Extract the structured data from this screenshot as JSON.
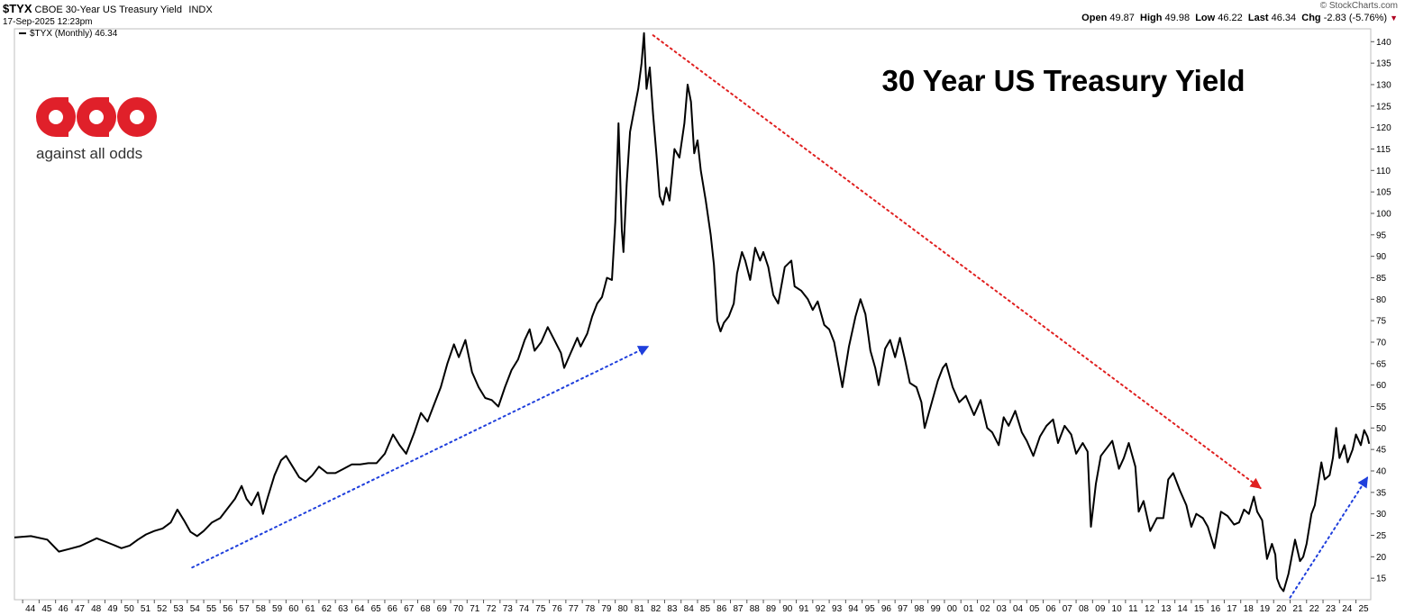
{
  "header": {
    "symbol": "$TYX",
    "description": "CBOE 30-Year US Treasury Yield",
    "exchange": "INDX",
    "timestamp": "17-Sep-2025 12:23pm",
    "watermark": "© StockCharts.com",
    "open_label": "Open",
    "open": "49.87",
    "high_label": "High",
    "high": "49.98",
    "low_label": "Low",
    "low": "46.22",
    "last_label": "Last",
    "last": "46.34",
    "chg_label": "Chg",
    "chg": "-2.83 (-5.76%)",
    "chg_color": "#b00020"
  },
  "legend": {
    "text": "$TYX (Monthly) 46.34"
  },
  "logo": {
    "text": "against all odds",
    "color": "#e0202a"
  },
  "chart_data": {
    "type": "line",
    "title": "30 Year US Treasury Yield",
    "xlabel": "",
    "ylabel": "",
    "ylim": [
      10,
      143
    ],
    "xlim": [
      1943.5,
      2025.9
    ],
    "x_tick_labels": [
      "44",
      "45",
      "46",
      "47",
      "48",
      "49",
      "50",
      "51",
      "52",
      "53",
      "54",
      "55",
      "56",
      "57",
      "58",
      "59",
      "60",
      "61",
      "62",
      "63",
      "64",
      "65",
      "66",
      "67",
      "68",
      "69",
      "70",
      "71",
      "72",
      "73",
      "74",
      "75",
      "76",
      "77",
      "78",
      "79",
      "80",
      "81",
      "82",
      "83",
      "84",
      "85",
      "86",
      "87",
      "88",
      "89",
      "90",
      "91",
      "92",
      "93",
      "94",
      "95",
      "96",
      "97",
      "98",
      "99",
      "00",
      "01",
      "02",
      "03",
      "04",
      "05",
      "06",
      "07",
      "08",
      "09",
      "10",
      "11",
      "12",
      "13",
      "14",
      "15",
      "16",
      "17",
      "18",
      "19",
      "20",
      "21",
      "22",
      "23",
      "24",
      "25"
    ],
    "y_ticks": [
      15,
      20,
      25,
      30,
      35,
      40,
      45,
      50,
      55,
      60,
      65,
      70,
      75,
      80,
      85,
      90,
      95,
      100,
      105,
      110,
      115,
      120,
      125,
      130,
      135,
      140
    ],
    "grid": false,
    "series": [
      {
        "values": [
          [
            1943.5,
            24.5
          ],
          [
            1944.5,
            24.8
          ],
          [
            1945.5,
            24.0
          ],
          [
            1946.2,
            21.2
          ],
          [
            1946.8,
            21.8
          ],
          [
            1947.5,
            22.5
          ],
          [
            1948.5,
            24.3
          ],
          [
            1949.5,
            22.8
          ],
          [
            1950.0,
            22.0
          ],
          [
            1950.5,
            22.6
          ],
          [
            1951.0,
            24.0
          ],
          [
            1951.5,
            25.2
          ],
          [
            1952.0,
            26.0
          ],
          [
            1952.5,
            26.6
          ],
          [
            1953.0,
            28.0
          ],
          [
            1953.4,
            31.0
          ],
          [
            1953.8,
            28.5
          ],
          [
            1954.2,
            25.8
          ],
          [
            1954.6,
            24.8
          ],
          [
            1955.0,
            26.0
          ],
          [
            1955.5,
            28.0
          ],
          [
            1956.0,
            29.0
          ],
          [
            1956.5,
            31.5
          ],
          [
            1956.9,
            33.5
          ],
          [
            1957.3,
            36.5
          ],
          [
            1957.6,
            33.5
          ],
          [
            1957.9,
            32.0
          ],
          [
            1958.3,
            35.0
          ],
          [
            1958.6,
            30.0
          ],
          [
            1958.9,
            34.0
          ],
          [
            1959.3,
            39.0
          ],
          [
            1959.7,
            42.5
          ],
          [
            1960.0,
            43.5
          ],
          [
            1960.4,
            41.0
          ],
          [
            1960.8,
            38.5
          ],
          [
            1961.2,
            37.5
          ],
          [
            1961.6,
            39.0
          ],
          [
            1962.0,
            41.0
          ],
          [
            1962.5,
            39.5
          ],
          [
            1963.0,
            39.5
          ],
          [
            1963.5,
            40.5
          ],
          [
            1964.0,
            41.5
          ],
          [
            1964.5,
            41.5
          ],
          [
            1965.0,
            41.8
          ],
          [
            1965.5,
            41.8
          ],
          [
            1966.0,
            44.0
          ],
          [
            1966.5,
            48.5
          ],
          [
            1966.9,
            46.0
          ],
          [
            1967.3,
            44.0
          ],
          [
            1967.8,
            49.0
          ],
          [
            1968.2,
            53.5
          ],
          [
            1968.6,
            51.5
          ],
          [
            1969.0,
            55.5
          ],
          [
            1969.4,
            59.5
          ],
          [
            1969.8,
            65.0
          ],
          [
            1970.2,
            69.5
          ],
          [
            1970.5,
            66.5
          ],
          [
            1970.9,
            70.5
          ],
          [
            1971.3,
            63.0
          ],
          [
            1971.7,
            59.5
          ],
          [
            1972.1,
            57.0
          ],
          [
            1972.5,
            56.5
          ],
          [
            1972.9,
            55.0
          ],
          [
            1973.3,
            59.5
          ],
          [
            1973.7,
            63.5
          ],
          [
            1974.1,
            66.0
          ],
          [
            1974.5,
            70.5
          ],
          [
            1974.8,
            73.0
          ],
          [
            1975.1,
            68.0
          ],
          [
            1975.5,
            70.0
          ],
          [
            1975.9,
            73.5
          ],
          [
            1976.3,
            70.5
          ],
          [
            1976.7,
            67.5
          ],
          [
            1976.9,
            64.0
          ],
          [
            1977.3,
            67.5
          ],
          [
            1977.7,
            71.0
          ],
          [
            1977.9,
            69.0
          ],
          [
            1978.3,
            72.0
          ],
          [
            1978.6,
            76.0
          ],
          [
            1978.9,
            79.0
          ],
          [
            1979.2,
            80.5
          ],
          [
            1979.5,
            85.0
          ],
          [
            1979.8,
            84.5
          ],
          [
            1980.0,
            98.0
          ],
          [
            1980.2,
            121.0
          ],
          [
            1980.4,
            96.0
          ],
          [
            1980.5,
            91.0
          ],
          [
            1980.7,
            107.0
          ],
          [
            1980.9,
            119.0
          ],
          [
            1981.1,
            123.0
          ],
          [
            1981.4,
            129.0
          ],
          [
            1981.6,
            135.0
          ],
          [
            1981.75,
            142.0
          ],
          [
            1981.9,
            129.0
          ],
          [
            1982.1,
            134.0
          ],
          [
            1982.3,
            123.0
          ],
          [
            1982.5,
            114.0
          ],
          [
            1982.7,
            104.0
          ],
          [
            1982.9,
            102.0
          ],
          [
            1983.1,
            106.0
          ],
          [
            1983.3,
            103.0
          ],
          [
            1983.6,
            115.0
          ],
          [
            1983.9,
            113.0
          ],
          [
            1984.2,
            121.0
          ],
          [
            1984.4,
            130.0
          ],
          [
            1984.6,
            126.0
          ],
          [
            1984.8,
            114.0
          ],
          [
            1985.0,
            117.0
          ],
          [
            1985.2,
            110.0
          ],
          [
            1985.5,
            103.0
          ],
          [
            1985.8,
            95.0
          ],
          [
            1986.0,
            88.0
          ],
          [
            1986.2,
            75.0
          ],
          [
            1986.4,
            72.5
          ],
          [
            1986.6,
            74.5
          ],
          [
            1986.9,
            76.0
          ],
          [
            1987.2,
            79.0
          ],
          [
            1987.4,
            86.0
          ],
          [
            1987.7,
            91.0
          ],
          [
            1987.9,
            89.0
          ],
          [
            1988.2,
            84.5
          ],
          [
            1988.5,
            92.0
          ],
          [
            1988.8,
            89.0
          ],
          [
            1989.0,
            91.0
          ],
          [
            1989.3,
            87.5
          ],
          [
            1989.6,
            81.0
          ],
          [
            1989.9,
            79.0
          ],
          [
            1990.3,
            87.5
          ],
          [
            1990.7,
            89.0
          ],
          [
            1990.9,
            83.0
          ],
          [
            1991.3,
            82.0
          ],
          [
            1991.7,
            80.0
          ],
          [
            1992.0,
            77.5
          ],
          [
            1992.3,
            79.5
          ],
          [
            1992.7,
            74.0
          ],
          [
            1993.0,
            73.0
          ],
          [
            1993.3,
            70.0
          ],
          [
            1993.8,
            59.5
          ],
          [
            1994.2,
            69.0
          ],
          [
            1994.6,
            76.0
          ],
          [
            1994.9,
            80.0
          ],
          [
            1995.2,
            76.5
          ],
          [
            1995.5,
            68.0
          ],
          [
            1995.8,
            64.0
          ],
          [
            1996.0,
            60.0
          ],
          [
            1996.4,
            68.5
          ],
          [
            1996.7,
            70.5
          ],
          [
            1997.0,
            66.5
          ],
          [
            1997.3,
            71.0
          ],
          [
            1997.6,
            66.0
          ],
          [
            1997.9,
            60.5
          ],
          [
            1998.3,
            59.5
          ],
          [
            1998.6,
            56.0
          ],
          [
            1998.8,
            50.0
          ],
          [
            1999.2,
            55.5
          ],
          [
            1999.6,
            61.0
          ],
          [
            1999.9,
            64.0
          ],
          [
            2000.1,
            65.0
          ],
          [
            2000.5,
            59.5
          ],
          [
            2000.9,
            56.0
          ],
          [
            2001.3,
            57.5
          ],
          [
            2001.8,
            53.0
          ],
          [
            2002.2,
            56.5
          ],
          [
            2002.6,
            50.0
          ],
          [
            2002.9,
            49.0
          ],
          [
            2003.3,
            46.0
          ],
          [
            2003.6,
            52.5
          ],
          [
            2003.9,
            50.5
          ],
          [
            2004.3,
            54.0
          ],
          [
            2004.7,
            49.0
          ],
          [
            2005.0,
            47.0
          ],
          [
            2005.4,
            43.5
          ],
          [
            2005.8,
            48.0
          ],
          [
            2006.2,
            50.5
          ],
          [
            2006.6,
            52.0
          ],
          [
            2006.9,
            46.5
          ],
          [
            2007.3,
            50.5
          ],
          [
            2007.7,
            48.5
          ],
          [
            2008.0,
            44.0
          ],
          [
            2008.4,
            46.5
          ],
          [
            2008.7,
            44.5
          ],
          [
            2008.9,
            27.0
          ],
          [
            2009.2,
            37.0
          ],
          [
            2009.5,
            43.5
          ],
          [
            2009.8,
            45.0
          ],
          [
            2010.2,
            47.0
          ],
          [
            2010.6,
            40.5
          ],
          [
            2010.9,
            43.0
          ],
          [
            2011.2,
            46.5
          ],
          [
            2011.6,
            41.0
          ],
          [
            2011.8,
            30.5
          ],
          [
            2012.1,
            33.0
          ],
          [
            2012.5,
            26.0
          ],
          [
            2012.9,
            29.0
          ],
          [
            2013.3,
            29.0
          ],
          [
            2013.6,
            38.0
          ],
          [
            2013.9,
            39.5
          ],
          [
            2014.3,
            35.5
          ],
          [
            2014.7,
            32.0
          ],
          [
            2015.0,
            27.0
          ],
          [
            2015.3,
            30.0
          ],
          [
            2015.7,
            29.0
          ],
          [
            2016.0,
            27.0
          ],
          [
            2016.4,
            22.0
          ],
          [
            2016.8,
            30.5
          ],
          [
            2017.2,
            29.5
          ],
          [
            2017.6,
            27.5
          ],
          [
            2017.9,
            28.0
          ],
          [
            2018.2,
            31.0
          ],
          [
            2018.5,
            30.0
          ],
          [
            2018.8,
            34.0
          ],
          [
            2019.0,
            30.5
          ],
          [
            2019.3,
            28.5
          ],
          [
            2019.6,
            19.5
          ],
          [
            2019.9,
            23.0
          ],
          [
            2020.1,
            20.5
          ],
          [
            2020.2,
            15.0
          ],
          [
            2020.4,
            13.0
          ],
          [
            2020.6,
            12.0
          ],
          [
            2020.9,
            16.0
          ],
          [
            2021.1,
            20.0
          ],
          [
            2021.3,
            24.0
          ],
          [
            2021.6,
            19.0
          ],
          [
            2021.8,
            20.0
          ],
          [
            2022.0,
            23.0
          ],
          [
            2022.3,
            30.0
          ],
          [
            2022.5,
            32.0
          ],
          [
            2022.7,
            37.0
          ],
          [
            2022.9,
            42.0
          ],
          [
            2023.1,
            38.0
          ],
          [
            2023.4,
            39.0
          ],
          [
            2023.6,
            43.0
          ],
          [
            2023.8,
            50.0
          ],
          [
            2024.0,
            43.0
          ],
          [
            2024.3,
            46.0
          ],
          [
            2024.5,
            42.0
          ],
          [
            2024.8,
            45.0
          ],
          [
            2025.0,
            48.5
          ],
          [
            2025.3,
            46.0
          ],
          [
            2025.5,
            49.5
          ],
          [
            2025.7,
            48.0
          ],
          [
            2025.8,
            46.34
          ]
        ]
      }
    ],
    "annotations": [
      {
        "type": "arrow",
        "color": "#1f3fdc",
        "from": [
          1954.3,
          17.5
        ],
        "to": [
          1982.0,
          69.0
        ]
      },
      {
        "type": "arrow",
        "color": "#e02020",
        "from": [
          1982.3,
          141.5
        ],
        "to": [
          2019.2,
          36.0
        ]
      },
      {
        "type": "arrow",
        "color": "#1f3fdc",
        "from": [
          2021.0,
          10.5
        ],
        "to": [
          2025.7,
          38.5
        ]
      }
    ]
  }
}
